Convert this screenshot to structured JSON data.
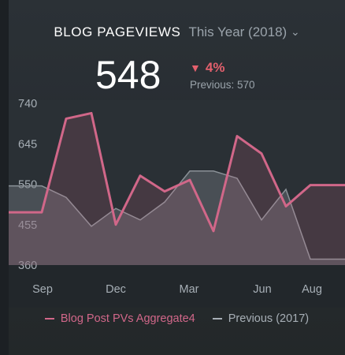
{
  "header": {
    "title": "BLOG PAGEVIEWS",
    "period": "This Year (2018)"
  },
  "kpi": {
    "value": "548",
    "delta": "4%",
    "delta_direction": "down",
    "previous": "Previous: 570"
  },
  "colors": {
    "current": "#d16789",
    "previous": "#6f767c",
    "delta": "#e4606d"
  },
  "chart_data": {
    "type": "line",
    "x_labels": [
      "Sep",
      "Dec",
      "Mar",
      "Jun",
      "Aug"
    ],
    "y_ticks": [
      "740",
      "645",
      "550",
      "455",
      "360"
    ],
    "ylim": [
      360,
      740
    ],
    "series": [
      {
        "name": "Blog Post PVs Aggregate4",
        "values": [
          484,
          484,
          704,
          717,
          455,
          570,
          533,
          560,
          440,
          663,
          622,
          498,
          548,
          548
        ]
      },
      {
        "name": "Previous (2017)",
        "values": [
          546,
          546,
          519,
          451,
          493,
          466,
          508,
          581,
          581,
          564,
          466,
          538,
          374,
          374
        ]
      }
    ],
    "grid": false,
    "legend_position": "bottom"
  }
}
